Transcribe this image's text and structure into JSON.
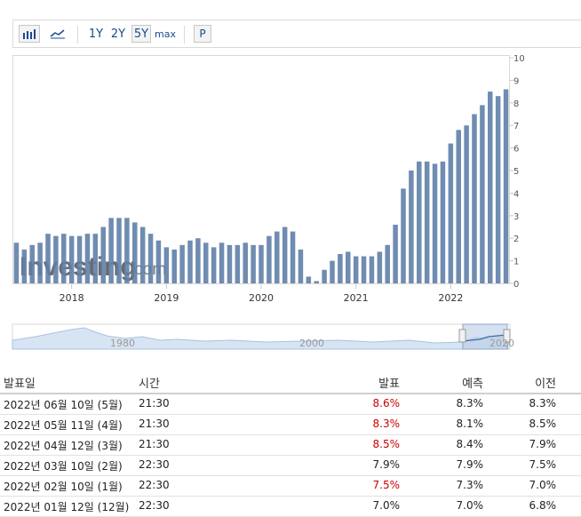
{
  "toolbar": {
    "bar_icon": "bar-chart-icon",
    "line_icon": "line-chart-icon",
    "range_1y": "1Y",
    "range_2y": "2Y",
    "range_5y": "5Y",
    "range_max": "max",
    "selected_range": "5Y",
    "p_label": "P"
  },
  "watermark": {
    "brand": "Investing",
    "suffix": ".com"
  },
  "colors": {
    "bar": "#5f7fa8",
    "navigator_fill": "#d7e4f3",
    "actual_up": "#cc0000"
  },
  "chart_data": {
    "type": "bar",
    "title": "",
    "xlabel": "",
    "ylabel": "",
    "ylim": [
      0,
      10
    ],
    "yticks": [
      "0",
      "1",
      "2",
      "3",
      "4",
      "5",
      "6",
      "7",
      "8",
      "9",
      "10"
    ],
    "x_year_labels": [
      "2018",
      "2019",
      "2020",
      "2021",
      "2022"
    ],
    "series": [
      {
        "values": [
          1.8,
          1.5,
          1.7,
          1.8,
          2.2,
          2.1,
          2.2,
          2.1,
          2.1,
          2.2,
          2.2,
          2.5,
          2.9,
          2.9,
          2.9,
          2.7,
          2.5,
          2.2,
          1.9,
          1.6,
          1.5,
          1.7,
          1.9,
          2.0,
          1.8,
          1.6,
          1.8,
          1.7,
          1.7,
          1.8,
          1.7,
          1.7,
          2.1,
          2.3,
          2.5,
          2.3,
          1.5,
          0.3,
          0.1,
          0.6,
          1.0,
          1.3,
          1.4,
          1.2,
          1.2,
          1.2,
          1.4,
          1.7,
          2.6,
          4.2,
          5.0,
          5.4,
          5.4,
          5.3,
          5.4,
          6.2,
          6.8,
          7.0,
          7.5,
          7.9,
          8.5,
          8.3,
          8.6
        ]
      }
    ],
    "navigator": {
      "year_labels": [
        "1980",
        "2000",
        "2020"
      ]
    }
  },
  "table": {
    "headers": {
      "date": "발표일",
      "time": "시간",
      "actual": "발표",
      "forecast": "예측",
      "previous": "이전"
    },
    "rows": [
      {
        "date": "2022년 06월 10일 (5월)",
        "time": "21:30",
        "actual": "8.6%",
        "forecast": "8.3%",
        "previous": "8.3%",
        "actual_red": true
      },
      {
        "date": "2022년 05월 11일 (4월)",
        "time": "21:30",
        "actual": "8.3%",
        "forecast": "8.1%",
        "previous": "8.5%",
        "actual_red": true
      },
      {
        "date": "2022년 04월 12일 (3월)",
        "time": "21:30",
        "actual": "8.5%",
        "forecast": "8.4%",
        "previous": "7.9%",
        "actual_red": true
      },
      {
        "date": "2022년 03월 10일 (2월)",
        "time": "22:30",
        "actual": "7.9%",
        "forecast": "7.9%",
        "previous": "7.5%",
        "actual_red": false
      },
      {
        "date": "2022년 02월 10일 (1월)",
        "time": "22:30",
        "actual": "7.5%",
        "forecast": "7.3%",
        "previous": "7.0%",
        "actual_red": true
      },
      {
        "date": "2022년 01월 12일 (12월)",
        "time": "22:30",
        "actual": "7.0%",
        "forecast": "7.0%",
        "previous": "6.8%",
        "actual_red": false
      }
    ]
  }
}
